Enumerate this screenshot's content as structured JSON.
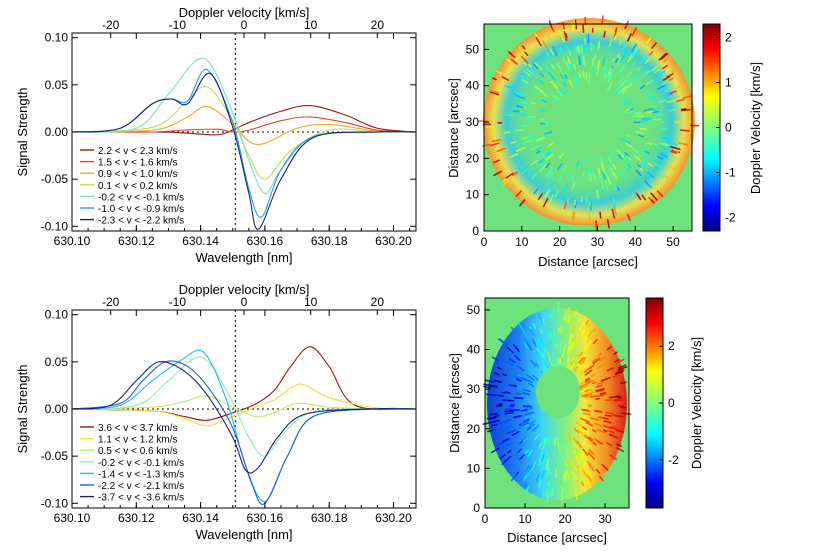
{
  "panels": [
    {
      "id": "top-spectrum",
      "title": "",
      "top_axis_label": "Doppler velocity [km/s]",
      "top_ticks": [
        "-20",
        "-10",
        "0",
        "10",
        "20"
      ],
      "y_label": "Signal Strength",
      "x_label": "Wavelength [nm]"
    },
    {
      "id": "bottom-spectrum",
      "title": "",
      "top_axis_label": "Doppler velocity [km/s]",
      "top_ticks": [
        "-20",
        "-10",
        "0",
        "10",
        "20"
      ],
      "y_label": "Signal Strength",
      "x_label": "Wavelength [nm]"
    },
    {
      "id": "top-map",
      "x_label": "Distance [arcsec]",
      "y_label": "Distance [arcsec]",
      "colorbar_label": "Doppler Velocity [km/s]"
    },
    {
      "id": "bottom-map",
      "x_label": "Distance [arcsec]",
      "y_label": "Distance [arcsec]",
      "colorbar_label": "Doppler Velocity [km/s]"
    }
  ],
  "chart_data": [
    {
      "type": "line",
      "x_axis": "wavelength_nm",
      "xlim": [
        630.1,
        630.207
      ],
      "ylim": [
        -0.105,
        0.105
      ],
      "x_ticks": [
        "630.10",
        "630.12",
        "630.14",
        "630.16",
        "630.18",
        "630.20"
      ],
      "y_ticks": [
        "0.10",
        "0.05",
        "0.00",
        "-0.05",
        "-0.10"
      ],
      "rest_wavelength": 630.1508,
      "velocity_range": [
        -25.8,
        25.8
      ],
      "zero_line": true,
      "legend_position": "bottom-left",
      "series": [
        {
          "name": "2.2 < v < 2.3 km/s",
          "color": "#8b1a1a",
          "x": [
            630.1,
            630.125,
            630.135,
            630.145,
            630.15,
            630.155,
            630.165,
            630.174,
            630.185,
            630.195,
            630.207
          ],
          "y": [
            0.0,
            0.0,
            -0.001,
            -0.003,
            0.002,
            0.01,
            0.022,
            0.028,
            0.018,
            0.004,
            0.0
          ]
        },
        {
          "name": "1.5 < v < 1.6 km/s",
          "color": "#e34234",
          "x": [
            630.1,
            630.125,
            630.135,
            630.145,
            630.15,
            630.155,
            630.165,
            630.174,
            630.185,
            630.195,
            630.207
          ],
          "y": [
            0.0,
            0.0,
            0.002,
            0.003,
            0.0,
            0.002,
            0.012,
            0.016,
            0.01,
            0.002,
            0.0
          ]
        },
        {
          "name": "0.9 < v < 1.0 km/s",
          "color": "#f5a623",
          "x": [
            630.1,
            630.125,
            630.135,
            630.142,
            630.15,
            630.155,
            630.16,
            630.17,
            630.18,
            630.195,
            630.207
          ],
          "y": [
            0.0,
            0.002,
            0.014,
            0.027,
            0.008,
            -0.01,
            -0.012,
            0.004,
            0.008,
            0.001,
            0.0
          ]
        },
        {
          "name": "0.1 < v < 0.2 km/s",
          "color": "#b8e05a",
          "x": [
            630.1,
            630.125,
            630.135,
            630.142,
            630.15,
            630.155,
            630.16,
            630.168,
            630.18,
            630.195,
            630.207
          ],
          "y": [
            0.0,
            0.005,
            0.03,
            0.048,
            0.012,
            -0.025,
            -0.05,
            -0.02,
            0.002,
            0.0,
            0.0
          ]
        },
        {
          "name": "-0.2 < v < -0.1 km/s",
          "color": "#7ee0c8",
          "x": [
            630.1,
            630.12,
            630.13,
            630.141,
            630.15,
            630.155,
            630.16,
            630.165,
            630.175,
            630.195,
            630.207
          ],
          "y": [
            0.0,
            0.004,
            0.04,
            0.078,
            0.02,
            -0.03,
            -0.065,
            -0.04,
            -0.005,
            0.0,
            0.0
          ]
        },
        {
          "name": "-1.0 < v < -0.9 km/s",
          "color": "#1ea0e6",
          "x": [
            630.1,
            630.115,
            630.125,
            630.131,
            630.136,
            630.142,
            630.15,
            630.155,
            630.159,
            630.165,
            630.175,
            630.195,
            630.207
          ],
          "y": [
            0.0,
            0.004,
            0.03,
            0.035,
            0.033,
            0.066,
            0.01,
            -0.06,
            -0.09,
            -0.04,
            -0.005,
            0.0,
            0.0
          ]
        },
        {
          "name": "-2.3 < v < -2.2 km/s",
          "color": "#1b1f7a",
          "x": [
            630.1,
            630.115,
            630.125,
            630.131,
            630.136,
            630.143,
            630.15,
            630.155,
            630.158,
            630.165,
            630.175,
            630.195,
            630.207
          ],
          "y": [
            0.0,
            0.004,
            0.03,
            0.035,
            0.03,
            0.062,
            0.005,
            -0.065,
            -0.103,
            -0.05,
            -0.006,
            0.0,
            0.0
          ]
        }
      ]
    },
    {
      "type": "line",
      "x_axis": "wavelength_nm",
      "xlim": [
        630.1,
        630.207
      ],
      "ylim": [
        -0.105,
        0.105
      ],
      "x_ticks": [
        "630.10",
        "630.12",
        "630.14",
        "630.16",
        "630.18",
        "630.20"
      ],
      "y_ticks": [
        "0.10",
        "0.05",
        "0.00",
        "-0.05",
        "-0.10"
      ],
      "rest_wavelength": 630.1508,
      "velocity_range": [
        -25.8,
        25.8
      ],
      "zero_line": true,
      "legend_position": "bottom-left",
      "series": [
        {
          "name": "3.6 < v < 3.7 km/s",
          "color": "#8b1a1a",
          "x": [
            630.1,
            630.125,
            630.135,
            630.142,
            630.15,
            630.157,
            630.163,
            630.168,
            630.174,
            630.18,
            630.188,
            630.207
          ],
          "y": [
            0.0,
            -0.002,
            -0.008,
            -0.012,
            -0.004,
            0.005,
            0.02,
            0.045,
            0.066,
            0.045,
            0.004,
            0.0
          ]
        },
        {
          "name": "1.1 < v < 1.2 km/s",
          "color": "#f0e030",
          "x": [
            630.1,
            630.125,
            630.135,
            630.142,
            630.15,
            630.157,
            630.163,
            630.168,
            630.172,
            630.18,
            630.195,
            630.207
          ],
          "y": [
            0.0,
            -0.002,
            -0.01,
            -0.018,
            -0.008,
            0.002,
            0.01,
            0.022,
            0.026,
            0.012,
            0.001,
            0.0
          ]
        },
        {
          "name": "0.5 < v < 0.6 km/s",
          "color": "#c8e860",
          "x": [
            630.1,
            630.125,
            630.135,
            630.142,
            630.15,
            630.157,
            630.163,
            630.17,
            630.18,
            630.195,
            630.207
          ],
          "y": [
            0.0,
            0.002,
            0.008,
            0.014,
            0.002,
            -0.008,
            -0.004,
            0.006,
            0.002,
            0.0,
            0.0
          ]
        },
        {
          "name": "-0.2 < v < -0.1 km/s",
          "color": "#8ef0b0",
          "x": [
            630.1,
            630.12,
            630.13,
            630.14,
            630.148,
            630.155,
            630.16,
            630.166,
            630.175,
            630.195,
            630.207
          ],
          "y": [
            0.0,
            0.004,
            0.03,
            0.055,
            0.02,
            -0.03,
            -0.05,
            -0.025,
            -0.003,
            0.0,
            0.0
          ]
        },
        {
          "name": "-1.4 < v < -1.3 km/s",
          "color": "#20c0e8",
          "x": [
            630.1,
            630.115,
            630.125,
            630.134,
            630.141,
            630.148,
            630.154,
            630.16,
            630.167,
            630.175,
            630.195,
            630.207
          ],
          "y": [
            0.0,
            0.004,
            0.03,
            0.052,
            0.06,
            0.01,
            -0.06,
            -0.098,
            -0.05,
            -0.008,
            0.0,
            0.0
          ]
        },
        {
          "name": "-2.2 < v < -2.1 km/s",
          "color": "#1e5ce0",
          "x": [
            630.1,
            630.115,
            630.122,
            630.129,
            630.136,
            630.143,
            630.15,
            630.156,
            630.16,
            630.167,
            630.175,
            630.195,
            630.207
          ],
          "y": [
            0.0,
            0.006,
            0.03,
            0.05,
            0.045,
            0.02,
            -0.02,
            -0.08,
            -0.1,
            -0.05,
            -0.008,
            0.0,
            0.0
          ]
        },
        {
          "name": "-3.7 < v < -3.6 km/s",
          "color": "#1b1f7a",
          "x": [
            630.1,
            630.112,
            630.12,
            630.127,
            630.135,
            630.142,
            630.15,
            630.154,
            630.158,
            630.164,
            630.172,
            630.19,
            630.207
          ],
          "y": [
            0.0,
            0.004,
            0.03,
            0.05,
            0.04,
            0.015,
            -0.03,
            -0.065,
            -0.062,
            -0.03,
            -0.006,
            0.0,
            0.0
          ]
        }
      ]
    },
    {
      "type": "heatmap",
      "x_ticks": [
        "0",
        "10",
        "20",
        "30",
        "40",
        "50"
      ],
      "y_ticks": [
        "0",
        "10",
        "20",
        "30",
        "40",
        "50"
      ],
      "xlim": [
        0,
        55
      ],
      "ylim": [
        0,
        57
      ],
      "colorbar_ticks": [
        "2",
        "1",
        "0",
        "-1",
        "-2"
      ],
      "colorbar_range": [
        -2.3,
        2.3
      ],
      "colormap": "jet",
      "background_color": "#6fe27d",
      "pattern": "radial-filamentary"
    },
    {
      "type": "heatmap",
      "x_ticks": [
        "0",
        "10",
        "20",
        "30"
      ],
      "y_ticks": [
        "0",
        "10",
        "20",
        "30",
        "40",
        "50"
      ],
      "xlim": [
        0,
        36
      ],
      "ylim": [
        0,
        53
      ],
      "colorbar_ticks": [
        "2",
        "0",
        "-2"
      ],
      "colorbar_range": [
        -3.7,
        3.7
      ],
      "colormap": "jet",
      "background_color": "#6fe27d",
      "pattern": "east-west-dipole"
    }
  ]
}
